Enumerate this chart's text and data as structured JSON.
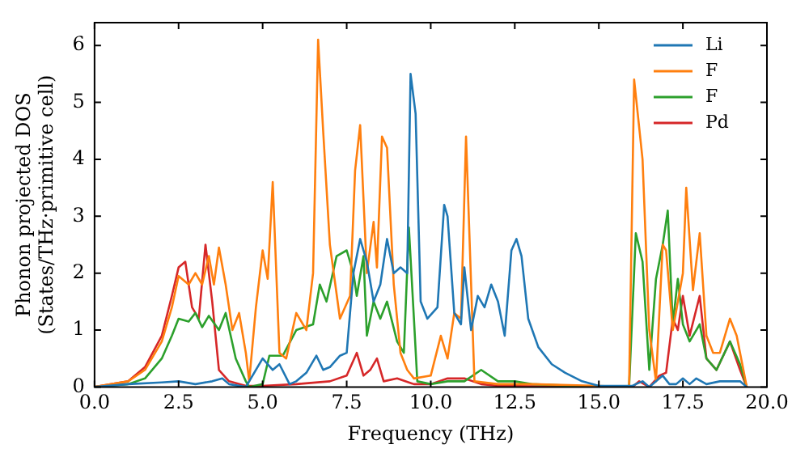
{
  "chart_data": {
    "type": "line",
    "xlabel": "Frequency (THz)",
    "ylabel": "Phonon projected DOS\n(States/THz·primitive cell)",
    "xlim": [
      0,
      20
    ],
    "ylim": [
      0,
      6.4
    ],
    "xticks": [
      {
        "value": 0,
        "label": "0.0"
      },
      {
        "value": 2.5,
        "label": "2.5"
      },
      {
        "value": 5,
        "label": "5.0"
      },
      {
        "value": 7.5,
        "label": "7.5"
      },
      {
        "value": 10,
        "label": "10.0"
      },
      {
        "value": 12.5,
        "label": "12.5"
      },
      {
        "value": 15,
        "label": "15.0"
      },
      {
        "value": 17.5,
        "label": "17.5"
      },
      {
        "value": 20,
        "label": "20.0"
      }
    ],
    "yticks": [
      0,
      1,
      2,
      3,
      4,
      5,
      6
    ],
    "grid": false,
    "legend": "top right",
    "marker": "none",
    "line_style": "solid",
    "series": [
      {
        "name": "Li",
        "color": "#1f77b4",
        "x": [
          0,
          1,
          2,
          2.5,
          3,
          3.5,
          3.8,
          4,
          4.5,
          5,
          5.3,
          5.5,
          5.8,
          6,
          6.3,
          6.6,
          6.8,
          7,
          7.3,
          7.5,
          7.7,
          7.9,
          8.1,
          8.3,
          8.5,
          8.7,
          8.9,
          9.1,
          9.3,
          9.4,
          9.55,
          9.7,
          9.9,
          10.2,
          10.4,
          10.5,
          10.7,
          10.9,
          11,
          11.2,
          11.4,
          11.6,
          11.8,
          12,
          12.2,
          12.4,
          12.55,
          12.7,
          12.9,
          13.2,
          13.6,
          14,
          14.5,
          15,
          16,
          16.1,
          16.3,
          16.5,
          16.9,
          17.1,
          17.3,
          17.5,
          17.7,
          17.9,
          18.2,
          18.6,
          19.2,
          19.4
        ],
        "values": [
          0,
          0.05,
          0.08,
          0.1,
          0.05,
          0.1,
          0.15,
          0.05,
          0,
          0.5,
          0.3,
          0.4,
          0.05,
          0.1,
          0.25,
          0.55,
          0.3,
          0.35,
          0.55,
          0.6,
          2,
          2.6,
          2.2,
          1.5,
          1.8,
          2.6,
          2,
          2.1,
          2,
          5.5,
          4.8,
          1.5,
          1.2,
          1.4,
          3.2,
          3,
          1.3,
          1.1,
          2.1,
          1,
          1.6,
          1.4,
          1.8,
          1.5,
          0.9,
          2.4,
          2.6,
          2.3,
          1.2,
          0.7,
          0.4,
          0.25,
          0.1,
          0.02,
          0.02,
          0.05,
          0.1,
          0,
          0.2,
          0.05,
          0.05,
          0.15,
          0.05,
          0.15,
          0.05,
          0.1,
          0.1,
          0
        ]
      },
      {
        "name": "F",
        "color": "#ff7f0e",
        "x": [
          0,
          1,
          1.5,
          2,
          2.3,
          2.5,
          2.8,
          3,
          3.2,
          3.4,
          3.55,
          3.7,
          3.9,
          4.1,
          4.3,
          4.5,
          4.6,
          4.8,
          5,
          5.15,
          5.3,
          5.5,
          5.7,
          6,
          6.3,
          6.5,
          6.65,
          6.8,
          7,
          7.3,
          7.6,
          7.75,
          7.9,
          8.1,
          8.3,
          8.4,
          8.55,
          8.7,
          8.9,
          9.1,
          9.3,
          9.5,
          10,
          10.3,
          10.5,
          10.7,
          10.9,
          11.05,
          11.3,
          12,
          13,
          15,
          15.9,
          16.05,
          16.3,
          16.5,
          16.7,
          16.9,
          17,
          17.2,
          17.5,
          17.6,
          17.8,
          18,
          18.2,
          18.4,
          18.6,
          18.9,
          19.1,
          19.3,
          19.4
        ],
        "values": [
          0,
          0.1,
          0.3,
          0.8,
          1.4,
          1.95,
          1.8,
          2,
          1.8,
          2.3,
          1.8,
          2.45,
          1.8,
          1,
          1.3,
          0.6,
          0.1,
          1.4,
          2.4,
          1.9,
          3.6,
          0.6,
          0.5,
          1.3,
          1,
          2,
          6.1,
          4.5,
          2.5,
          1.2,
          1.6,
          3.8,
          4.6,
          2,
          2.9,
          2.1,
          4.4,
          4.2,
          1.8,
          0.6,
          0.3,
          0.15,
          0.2,
          0.9,
          0.5,
          1.3,
          1.2,
          4.4,
          0.1,
          0.05,
          0.05,
          0.02,
          0,
          5.4,
          4,
          1,
          0.1,
          2.5,
          2.4,
          1,
          2,
          3.5,
          1.7,
          2.7,
          0.9,
          0.6,
          0.6,
          1.2,
          0.9,
          0.3,
          0
        ]
      },
      {
        "name": "F",
        "color": "#2ca02c",
        "x": [
          0,
          1,
          1.5,
          2,
          2.3,
          2.5,
          2.8,
          3,
          3.2,
          3.4,
          3.7,
          3.9,
          4.2,
          4.5,
          4.6,
          5,
          5.2,
          5.6,
          6,
          6.5,
          6.7,
          6.9,
          7.2,
          7.5,
          7.7,
          7.8,
          8,
          8.1,
          8.3,
          8.5,
          8.7,
          9,
          9.2,
          9.35,
          9.5,
          9.6,
          10,
          10.5,
          11,
          11.5,
          12,
          12.5,
          13,
          15,
          15.9,
          16.1,
          16.3,
          16.5,
          16.7,
          16.9,
          17.05,
          17.2,
          17.35,
          17.5,
          17.7,
          18,
          18.2,
          18.5,
          18.9,
          19.2,
          19.4
        ],
        "values": [
          0,
          0.05,
          0.15,
          0.5,
          0.9,
          1.2,
          1.15,
          1.3,
          1.05,
          1.25,
          1,
          1.3,
          0.5,
          0.1,
          0,
          0.05,
          0.55,
          0.55,
          1,
          1.1,
          1.8,
          1.5,
          2.3,
          2.4,
          2,
          1.6,
          2.3,
          0.9,
          1.5,
          1.2,
          1.5,
          0.8,
          0.6,
          2.8,
          1.2,
          0.1,
          0.05,
          0.1,
          0.1,
          0.3,
          0.1,
          0.1,
          0.05,
          0,
          0,
          2.7,
          2.2,
          0.3,
          1.9,
          2.5,
          3.1,
          1.1,
          1.9,
          1.1,
          0.8,
          1.1,
          0.5,
          0.3,
          0.8,
          0.4,
          0
        ]
      },
      {
        "name": "Pd",
        "color": "#d62728",
        "x": [
          0,
          1,
          1.5,
          2,
          2.3,
          2.5,
          2.7,
          2.9,
          3.1,
          3.3,
          3.5,
          3.7,
          4,
          4.5,
          5,
          6,
          7,
          7.5,
          7.8,
          8,
          8.2,
          8.4,
          8.6,
          9,
          9.5,
          10,
          10.5,
          11,
          11.5,
          12,
          15,
          16,
          16.2,
          16.5,
          16.8,
          17,
          17.2,
          17.35,
          17.5,
          17.7,
          18,
          18.2,
          18.5,
          18.9,
          19.2,
          19.4
        ],
        "values": [
          0,
          0.1,
          0.35,
          0.9,
          1.6,
          2.1,
          2.2,
          1.4,
          1.2,
          2.5,
          1.5,
          0.3,
          0.1,
          0.02,
          0.02,
          0.05,
          0.1,
          0.2,
          0.6,
          0.2,
          0.3,
          0.5,
          0.1,
          0.15,
          0.05,
          0.05,
          0.15,
          0.15,
          0.05,
          0.02,
          0,
          0,
          0.1,
          0,
          0.2,
          0.25,
          1.2,
          1,
          1.6,
          0.9,
          1.6,
          0.5,
          0.3,
          0.8,
          0.3,
          0
        ]
      }
    ]
  }
}
